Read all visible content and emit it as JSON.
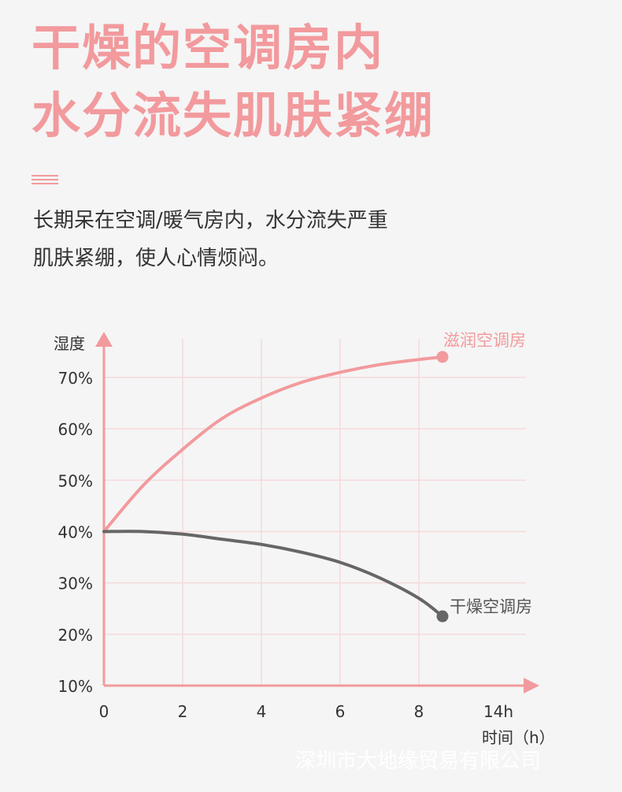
{
  "headline": {
    "line1": "干燥的空调房内",
    "line2": "水分流失肌肤紧绷"
  },
  "description": {
    "line1": "长期呆在空调/暖气房内，水分流失严重",
    "line2": "肌肤紧绷，使人心情烦闷。"
  },
  "colors": {
    "accent": "#f29a9d",
    "dry_series": "#666666",
    "grid": "#f5d9db"
  },
  "chart_data": {
    "type": "line",
    "ylabel": "湿度",
    "xlabel": "时间（h）",
    "x_ticks": [
      "0",
      "2",
      "4",
      "6",
      "8",
      "14h"
    ],
    "y_ticks": [
      "70%",
      "60%",
      "50%",
      "40%",
      "30%",
      "20%",
      "10%"
    ],
    "ylim": [
      10,
      70
    ],
    "grid": true,
    "series": [
      {
        "name": "滋润空调房",
        "color": "#f29a9d",
        "x": [
          0,
          1,
          2,
          3,
          4,
          5,
          6,
          7,
          8,
          8.6
        ],
        "y": [
          40,
          49,
          56,
          62,
          66,
          69,
          71,
          72.5,
          73.5,
          74
        ]
      },
      {
        "name": "干燥空调房",
        "color": "#666666",
        "x": [
          0,
          1,
          2,
          3,
          4,
          5,
          6,
          7,
          8,
          8.6
        ],
        "y": [
          40,
          40,
          39.5,
          38.5,
          37.5,
          36,
          34,
          31,
          27,
          23.5
        ]
      }
    ]
  },
  "watermark": "深圳市大地缘贸易有限公司"
}
